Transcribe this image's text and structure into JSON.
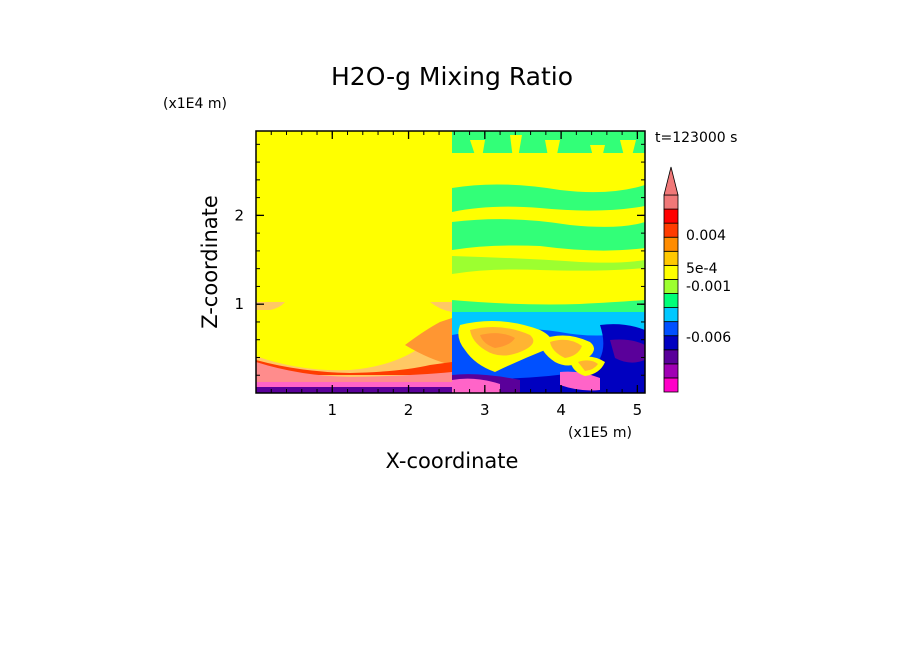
{
  "chart_data": {
    "type": "heatmap",
    "title": "H2O-g Mixing Ratio",
    "xlabel": "X-coordinate",
    "ylabel": "Z-coordinate",
    "x_unit": "(x1E5 m)",
    "y_unit": "(x1E4 m)",
    "time_label": "t=123000 s",
    "x_ticks": [
      "1",
      "2",
      "3",
      "4",
      "5"
    ],
    "y_ticks": [
      "1",
      "2"
    ],
    "xlim": [
      0,
      5.1
    ],
    "ylim": [
      0,
      2.95
    ],
    "grid": false,
    "colorbar": {
      "labels": [
        "0.004",
        "5e-4",
        "-0.001",
        "-0.006"
      ],
      "colors": [
        "#ff00c8",
        "#a000b4",
        "#5a009a",
        "#0000c0",
        "#0050ff",
        "#00c8ff",
        "#00ff78",
        "#9cff30",
        "#ffff00",
        "#ffc800",
        "#ff8c00",
        "#ff3c00",
        "#ff0000",
        "#f07878"
      ],
      "extend": "max"
    },
    "fields": {
      "background": "#ffff00",
      "left_bottom": [
        "#ff64c8",
        "#ff8c8c",
        "#ff9632",
        "#ffc864"
      ],
      "right_upper": [
        "#32ff78",
        "#9cff30"
      ],
      "right_lower": [
        "#ffb432",
        "#ff9632",
        "#ff64c8",
        "#0000c0",
        "#5a009a",
        "#0050ff",
        "#00c8ff"
      ]
    }
  }
}
